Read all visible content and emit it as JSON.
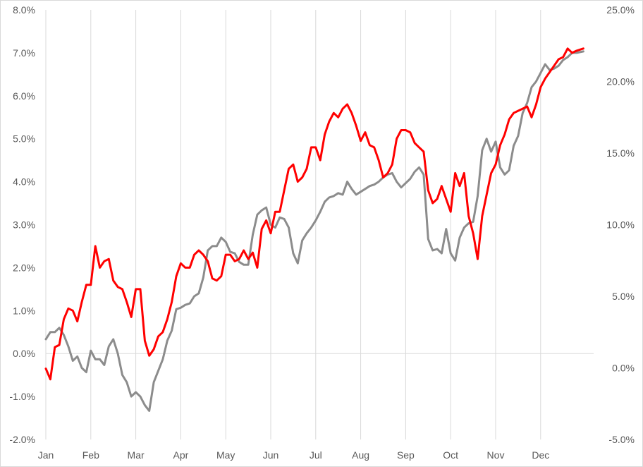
{
  "chart_data": {
    "type": "line",
    "title": "",
    "xlabel": "",
    "categories": [
      "Jan",
      "Feb",
      "Mar",
      "Apr",
      "May",
      "Jun",
      "Jul",
      "Aug",
      "Sep",
      "Oct",
      "Nov",
      "Dec"
    ],
    "y_left": {
      "ylim": [
        -2.0,
        8.0
      ],
      "ticks": [
        -2.0,
        -1.0,
        0.0,
        1.0,
        2.0,
        3.0,
        4.0,
        5.0,
        6.0,
        7.0,
        8.0
      ],
      "tick_labels": [
        "-2.0%",
        "-1.0%",
        "0.0%",
        "1.0%",
        "2.0%",
        "3.0%",
        "4.0%",
        "5.0%",
        "6.0%",
        "7.0%",
        "8.0%"
      ]
    },
    "y_right": {
      "ylim": [
        -5.0,
        25.0
      ],
      "ticks": [
        -5.0,
        0.0,
        5.0,
        10.0,
        15.0,
        20.0,
        25.0
      ],
      "tick_labels": [
        "-5.0%",
        "0.0%",
        "5.0%",
        "10.0%",
        "15.0%",
        "20.0%",
        "25.0%"
      ]
    },
    "grid": "vertical gridlines at month starts, horizontal line at 0.0%",
    "series": [
      {
        "color": "#ff0000",
        "axis": "left",
        "x": [
          0,
          0.1,
          0.2,
          0.3,
          0.4,
          0.5,
          0.6,
          0.7,
          0.8,
          0.9,
          1.0,
          1.1,
          1.2,
          1.3,
          1.4,
          1.5,
          1.6,
          1.7,
          1.8,
          1.9,
          2.0,
          2.1,
          2.2,
          2.3,
          2.4,
          2.5,
          2.6,
          2.7,
          2.8,
          2.9,
          3.0,
          3.1,
          3.2,
          3.3,
          3.4,
          3.5,
          3.6,
          3.7,
          3.8,
          3.9,
          4.0,
          4.1,
          4.2,
          4.3,
          4.4,
          4.5,
          4.6,
          4.7,
          4.8,
          4.9,
          5.0,
          5.1,
          5.2,
          5.3,
          5.4,
          5.5,
          5.6,
          5.7,
          5.8,
          5.9,
          6.0,
          6.1,
          6.2,
          6.3,
          6.4,
          6.5,
          6.6,
          6.7,
          6.8,
          6.9,
          7.0,
          7.1,
          7.2,
          7.3,
          7.4,
          7.5,
          7.6,
          7.7,
          7.8,
          7.9,
          8.0,
          8.1,
          8.2,
          8.3,
          8.4,
          8.5,
          8.6,
          8.7,
          8.8,
          8.9,
          9.0,
          9.1,
          9.2,
          9.3,
          9.4,
          9.5,
          9.6,
          9.7,
          9.8,
          9.9,
          10.0,
          10.1,
          10.2,
          10.3,
          10.4,
          10.5,
          10.6,
          10.7,
          10.8,
          10.9,
          11.0,
          11.1,
          11.2,
          11.3,
          11.4,
          11.5,
          11.6,
          11.7,
          11.8,
          11.95
        ],
        "y": [
          -0.35,
          -0.6,
          0.15,
          0.2,
          0.8,
          1.05,
          1.0,
          0.75,
          1.2,
          1.6,
          1.6,
          2.5,
          2.0,
          2.15,
          2.2,
          1.7,
          1.55,
          1.5,
          1.2,
          0.85,
          1.5,
          1.5,
          0.3,
          -0.05,
          0.1,
          0.4,
          0.5,
          0.8,
          1.2,
          1.8,
          2.1,
          2.0,
          2.0,
          2.3,
          2.4,
          2.3,
          2.15,
          1.75,
          1.7,
          1.8,
          2.3,
          2.3,
          2.15,
          2.2,
          2.4,
          2.2,
          2.35,
          2.0,
          2.9,
          3.1,
          2.8,
          3.3,
          3.3,
          3.8,
          4.3,
          4.4,
          4.0,
          4.1,
          4.3,
          4.8,
          4.8,
          4.5,
          5.1,
          5.4,
          5.6,
          5.5,
          5.7,
          5.8,
          5.6,
          5.3,
          4.95,
          5.15,
          4.85,
          4.8,
          4.5,
          4.1,
          4.2,
          4.4,
          5.0,
          5.2,
          5.2,
          5.15,
          4.9,
          4.8,
          4.7,
          3.8,
          3.5,
          3.6,
          3.9,
          3.6,
          3.3,
          4.2,
          3.9,
          4.2,
          3.2,
          2.8,
          2.2,
          3.2,
          3.7,
          4.2,
          4.4,
          4.85,
          5.1,
          5.45,
          5.6,
          5.65,
          5.7,
          5.75,
          5.5,
          5.8,
          6.2,
          6.4,
          6.55,
          6.7,
          6.85,
          6.9,
          7.1,
          7.0,
          7.05,
          7.1
        ]
      },
      {
        "color": "#8c8c8c",
        "axis": "right",
        "x": [
          0,
          0.1,
          0.2,
          0.3,
          0.4,
          0.5,
          0.6,
          0.7,
          0.8,
          0.9,
          1.0,
          1.1,
          1.2,
          1.3,
          1.4,
          1.5,
          1.6,
          1.7,
          1.8,
          1.9,
          2.0,
          2.1,
          2.2,
          2.3,
          2.4,
          2.5,
          2.6,
          2.7,
          2.8,
          2.9,
          3.0,
          3.1,
          3.2,
          3.3,
          3.4,
          3.5,
          3.6,
          3.7,
          3.8,
          3.9,
          4.0,
          4.1,
          4.2,
          4.3,
          4.4,
          4.5,
          4.6,
          4.7,
          4.8,
          4.9,
          5.0,
          5.1,
          5.2,
          5.3,
          5.4,
          5.5,
          5.6,
          5.7,
          5.8,
          5.9,
          6.0,
          6.1,
          6.2,
          6.3,
          6.4,
          6.5,
          6.6,
          6.7,
          6.8,
          6.9,
          7.0,
          7.1,
          7.2,
          7.3,
          7.4,
          7.5,
          7.6,
          7.7,
          7.8,
          7.9,
          8.0,
          8.1,
          8.2,
          8.3,
          8.4,
          8.5,
          8.6,
          8.7,
          8.8,
          8.9,
          9.0,
          9.1,
          9.2,
          9.3,
          9.4,
          9.5,
          9.6,
          9.7,
          9.8,
          9.9,
          10.0,
          10.1,
          10.2,
          10.3,
          10.4,
          10.5,
          10.6,
          10.7,
          10.8,
          10.9,
          11.0,
          11.1,
          11.2,
          11.3,
          11.4,
          11.5,
          11.6,
          11.7,
          11.8,
          11.95
        ],
        "y": [
          2.0,
          2.5,
          2.5,
          2.8,
          2.3,
          1.5,
          0.5,
          0.8,
          0.0,
          -0.3,
          1.2,
          0.6,
          0.6,
          0.2,
          1.5,
          2.0,
          1.0,
          -0.5,
          -1.0,
          -2.0,
          -1.7,
          -2.0,
          -2.6,
          -3.0,
          -1.0,
          -0.2,
          0.6,
          1.9,
          2.6,
          4.1,
          4.2,
          4.4,
          4.5,
          5.0,
          5.2,
          6.3,
          8.2,
          8.5,
          8.5,
          9.1,
          8.8,
          8.1,
          8.0,
          7.4,
          7.2,
          7.2,
          9.3,
          10.7,
          11.0,
          11.2,
          10.0,
          9.8,
          10.5,
          10.4,
          9.8,
          8.0,
          7.3,
          8.9,
          9.4,
          9.8,
          10.3,
          10.9,
          11.6,
          11.9,
          12.0,
          12.2,
          12.1,
          13.0,
          12.5,
          12.1,
          12.3,
          12.5,
          12.7,
          12.8,
          13.0,
          13.3,
          13.5,
          13.6,
          13.0,
          12.6,
          12.9,
          13.2,
          13.7,
          14.0,
          13.5,
          9.0,
          8.2,
          8.3,
          8.0,
          9.7,
          8.0,
          7.5,
          9.1,
          9.8,
          10.1,
          10.2,
          12.0,
          15.2,
          16.0,
          15.1,
          15.8,
          14.0,
          13.5,
          13.8,
          15.5,
          16.2,
          17.8,
          18.5,
          19.6,
          20.0,
          20.6,
          21.2,
          20.8,
          20.9,
          21.1,
          21.5,
          21.7,
          22.0,
          22.0,
          22.1
        ]
      }
    ]
  }
}
